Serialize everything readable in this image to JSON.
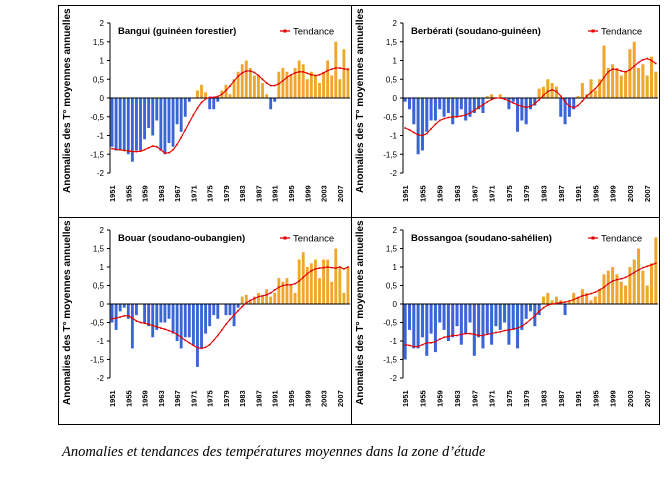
{
  "caption": "Anomalies et tendances des températures moyennes dans la zone d’étude",
  "colors": {
    "negative": "#3a64d8",
    "positive": "#f0a62c",
    "trend": "#e00000"
  },
  "chart_data": [
    {
      "type": "bar",
      "title": "Bangui (guinéen forestier)",
      "ylabel": "Anomalies des T° moyennes annuelles",
      "legend": "Tendance",
      "ylim": [
        -2,
        2
      ],
      "yticks": [
        "-2",
        "-1,5",
        "-1",
        "-0,5",
        "0",
        "0,5",
        "1",
        "1,5",
        "2"
      ],
      "xticks": [
        "1951",
        "1955",
        "1959",
        "1963",
        "1967",
        "1971",
        "1975",
        "1979",
        "1983",
        "1987",
        "1991",
        "1995",
        "1999",
        "2003",
        "2007"
      ],
      "years": [
        1951,
        2009
      ],
      "values": [
        -1.3,
        -1.4,
        -1.4,
        -1.4,
        -1.5,
        -1.7,
        -1.4,
        -1.4,
        -1.1,
        -0.8,
        -1.0,
        -0.6,
        -1.4,
        -1.5,
        -1.2,
        -1.3,
        -0.7,
        -0.9,
        -0.5,
        -0.1,
        0.0,
        0.2,
        0.35,
        0.15,
        -0.3,
        -0.3,
        -0.1,
        0.2,
        0.35,
        0.1,
        0.5,
        0.7,
        0.9,
        1.0,
        0.8,
        0.6,
        0.6,
        0.4,
        0.1,
        -0.3,
        -0.1,
        0.7,
        0.8,
        0.7,
        0.6,
        0.8,
        1.0,
        0.9,
        0.5,
        0.7,
        0.6,
        0.4,
        0.7,
        1.0,
        0.6,
        1.5,
        0.5,
        1.3,
        0.8
      ],
      "trend": [
        -1.35,
        -1.37,
        -1.38,
        -1.4,
        -1.41,
        -1.43,
        -1.43,
        -1.42,
        -1.38,
        -1.33,
        -1.28,
        -1.3,
        -1.38,
        -1.47,
        -1.46,
        -1.38,
        -1.24,
        -1.05,
        -0.85,
        -0.65,
        -0.45,
        -0.27,
        -0.12,
        -0.02,
        0.02,
        0.02,
        0.04,
        0.1,
        0.2,
        0.32,
        0.46,
        0.58,
        0.67,
        0.72,
        0.72,
        0.68,
        0.6,
        0.5,
        0.4,
        0.33,
        0.33,
        0.38,
        0.46,
        0.55,
        0.62,
        0.67,
        0.7,
        0.7,
        0.66,
        0.62,
        0.6,
        0.62,
        0.67,
        0.73,
        0.77,
        0.8,
        0.8,
        0.78,
        0.76
      ]
    },
    {
      "type": "bar",
      "title": "Berbérati (soudano-guinéen)",
      "ylabel": "Anomalies des T° moyennes annuelles",
      "legend": "Tendance",
      "ylim": [
        -2,
        2
      ],
      "yticks": [
        "-2",
        "-1,5",
        "-1",
        "-0,5",
        "0",
        "0,5",
        "1",
        "1,5",
        "2"
      ],
      "xticks": [
        "1951",
        "1955",
        "1959",
        "1963",
        "1967",
        "1971",
        "1975",
        "1979",
        "1983",
        "1987",
        "1991",
        "1995",
        "1999",
        "2003",
        "2007"
      ],
      "years": [
        1951,
        2009
      ],
      "values": [
        -0.1,
        -0.3,
        -0.7,
        -1.5,
        -1.4,
        -0.9,
        -0.6,
        -0.6,
        -0.3,
        -0.5,
        -0.4,
        -0.7,
        -0.5,
        -0.3,
        -0.6,
        -0.5,
        -0.4,
        -0.3,
        -0.4,
        0.05,
        0.1,
        0.0,
        0.1,
        0.0,
        -0.3,
        -0.1,
        -0.9,
        -0.6,
        -0.7,
        -0.3,
        -0.2,
        0.25,
        0.3,
        0.5,
        0.4,
        0.3,
        -0.5,
        -0.7,
        -0.5,
        -0.3,
        0.05,
        0.4,
        0.1,
        0.5,
        0.2,
        0.5,
        1.4,
        0.8,
        0.9,
        0.8,
        0.6,
        0.7,
        1.3,
        1.5,
        0.8,
        0.9,
        0.6,
        1.1,
        0.7
      ],
      "trend": [
        -0.8,
        -0.85,
        -0.92,
        -0.98,
        -1.0,
        -0.95,
        -0.82,
        -0.7,
        -0.6,
        -0.55,
        -0.52,
        -0.5,
        -0.5,
        -0.48,
        -0.45,
        -0.4,
        -0.33,
        -0.25,
        -0.18,
        -0.1,
        -0.04,
        0.0,
        0.0,
        -0.03,
        -0.08,
        -0.13,
        -0.18,
        -0.22,
        -0.25,
        -0.22,
        -0.15,
        -0.05,
        0.07,
        0.18,
        0.22,
        0.18,
        0.05,
        -0.1,
        -0.22,
        -0.26,
        -0.2,
        -0.08,
        0.05,
        0.15,
        0.25,
        0.38,
        0.55,
        0.7,
        0.77,
        0.76,
        0.72,
        0.7,
        0.75,
        0.85,
        0.95,
        1.02,
        1.05,
        1.0,
        0.92
      ]
    },
    {
      "type": "bar",
      "title": "Bouar (soudano-oubangien)",
      "ylabel": "Anomalies des T° moyennes annuelles",
      "legend": "Tendance",
      "ylim": [
        -2,
        2
      ],
      "yticks": [
        "-2",
        "-1,5",
        "-1",
        "-0,5",
        "0",
        "0,5",
        "1",
        "1,5",
        "2"
      ],
      "xticks": [
        "1951",
        "1955",
        "1959",
        "1963",
        "1967",
        "1971",
        "1975",
        "1979",
        "1983",
        "1987",
        "1991",
        "1995",
        "1999",
        "2003",
        "2007"
      ],
      "years": [
        1951,
        2009
      ],
      "values": [
        -0.5,
        -0.7,
        -0.2,
        -0.1,
        -0.4,
        -1.2,
        -0.3,
        0.0,
        -0.5,
        -0.6,
        -0.9,
        -0.7,
        -0.5,
        -0.5,
        -0.4,
        -0.8,
        -1.0,
        -1.2,
        -0.9,
        -0.9,
        -1.1,
        -1.7,
        -1.2,
        -0.8,
        -0.6,
        -0.3,
        -0.4,
        0.0,
        -0.3,
        -0.3,
        -0.6,
        -0.1,
        0.2,
        0.25,
        0.1,
        0.2,
        0.3,
        0.2,
        0.4,
        0.2,
        0.3,
        0.7,
        0.6,
        0.7,
        0.5,
        0.3,
        1.2,
        1.4,
        1.0,
        1.1,
        1.2,
        0.7,
        1.2,
        1.2,
        0.6,
        1.5,
        1.0,
        0.3,
        1.0
      ],
      "trend": [
        -0.4,
        -0.38,
        -0.35,
        -0.32,
        -0.32,
        -0.38,
        -0.46,
        -0.5,
        -0.52,
        -0.55,
        -0.58,
        -0.62,
        -0.65,
        -0.68,
        -0.72,
        -0.76,
        -0.82,
        -0.9,
        -0.98,
        -1.05,
        -1.12,
        -1.18,
        -1.2,
        -1.17,
        -1.1,
        -0.98,
        -0.85,
        -0.7,
        -0.55,
        -0.42,
        -0.3,
        -0.18,
        -0.07,
        0.03,
        0.1,
        0.15,
        0.2,
        0.22,
        0.25,
        0.3,
        0.38,
        0.45,
        0.5,
        0.52,
        0.52,
        0.55,
        0.62,
        0.72,
        0.82,
        0.9,
        0.95,
        0.97,
        0.98,
        1.0,
        0.98,
        0.97,
        1.0,
        0.95,
        1.0
      ]
    },
    {
      "type": "bar",
      "title": "Bossangoa (soudano-sahélien)",
      "ylabel": "Anomalies des T° moyennes annuelles",
      "legend": "Tendance",
      "ylim": [
        -2,
        2
      ],
      "yticks": [
        "-2",
        "-1,5",
        "-1",
        "-0,5",
        "0",
        "0,5",
        "1",
        "1,5",
        "2"
      ],
      "xticks": [
        "1951",
        "1955",
        "1959",
        "1963",
        "1967",
        "1971",
        "1975",
        "1979",
        "1983",
        "1987",
        "1991",
        "1995",
        "1999",
        "2003",
        "2007"
      ],
      "years": [
        1951,
        2009
      ],
      "values": [
        -1.5,
        -0.7,
        -1.2,
        -1.2,
        -0.9,
        -1.4,
        -0.8,
        -1.3,
        -0.5,
        -0.7,
        -1.0,
        -0.9,
        -0.6,
        -1.1,
        -0.8,
        -0.5,
        -1.4,
        -0.9,
        -1.2,
        -0.8,
        -1.1,
        -0.6,
        -0.7,
        -0.5,
        -1.1,
        -0.7,
        -1.2,
        -0.7,
        -0.4,
        -0.2,
        -0.6,
        -0.3,
        0.2,
        0.3,
        0.1,
        0.2,
        0.1,
        -0.3,
        0.05,
        0.3,
        0.2,
        0.4,
        0.3,
        0.1,
        0.2,
        0.4,
        0.8,
        0.9,
        1.0,
        0.8,
        0.6,
        0.5,
        1.0,
        1.2,
        1.5,
        0.9,
        0.5,
        1.1,
        1.8
      ],
      "trend": [
        -1.1,
        -1.12,
        -1.15,
        -1.15,
        -1.1,
        -1.05,
        -1.05,
        -1.02,
        -0.95,
        -0.9,
        -0.88,
        -0.85,
        -0.85,
        -0.82,
        -0.8,
        -0.8,
        -0.82,
        -0.85,
        -0.85,
        -0.82,
        -0.8,
        -0.77,
        -0.75,
        -0.72,
        -0.7,
        -0.68,
        -0.65,
        -0.6,
        -0.52,
        -0.42,
        -0.32,
        -0.2,
        -0.1,
        -0.03,
        0.0,
        0.02,
        0.04,
        0.05,
        0.08,
        0.12,
        0.17,
        0.22,
        0.25,
        0.28,
        0.32,
        0.38,
        0.45,
        0.55,
        0.62,
        0.66,
        0.68,
        0.72,
        0.78,
        0.85,
        0.92,
        0.98,
        1.02,
        1.06,
        1.1
      ]
    }
  ]
}
